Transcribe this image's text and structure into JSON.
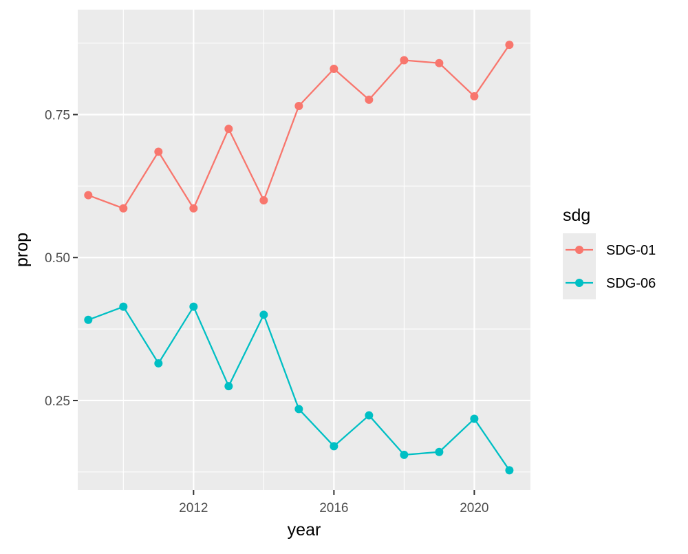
{
  "chart_data": {
    "type": "line",
    "xlabel": "year",
    "ylabel": "prop",
    "xlim": [
      2008.7,
      2021.6
    ],
    "ylim": [
      0.0935,
      0.9335
    ],
    "x_ticks": [
      2012,
      2016,
      2020
    ],
    "x_tick_labels": [
      "2012",
      "2016",
      "2020"
    ],
    "x_minor_ticks": [
      2010,
      2014,
      2018
    ],
    "y_ticks": [
      0.25,
      0.5,
      0.75
    ],
    "y_tick_labels": [
      "0.25",
      "0.50",
      "0.75"
    ],
    "y_minor_ticks": [
      0.125,
      0.375,
      0.625,
      0.875
    ],
    "grid": true,
    "legend": {
      "title": "sdg",
      "position": "right"
    },
    "x": [
      2009,
      2010,
      2011,
      2012,
      2013,
      2014,
      2015,
      2016,
      2017,
      2018,
      2019,
      2020,
      2021
    ],
    "series": [
      {
        "name": "SDG-01",
        "color": "#F8766D",
        "values": [
          0.609,
          0.586,
          0.685,
          0.586,
          0.725,
          0.6,
          0.765,
          0.83,
          0.776,
          0.845,
          0.84,
          0.782,
          0.872
        ]
      },
      {
        "name": "SDG-06",
        "color": "#00BFC4",
        "values": [
          0.391,
          0.414,
          0.315,
          0.414,
          0.275,
          0.4,
          0.235,
          0.17,
          0.224,
          0.155,
          0.16,
          0.218,
          0.128
        ]
      }
    ]
  }
}
